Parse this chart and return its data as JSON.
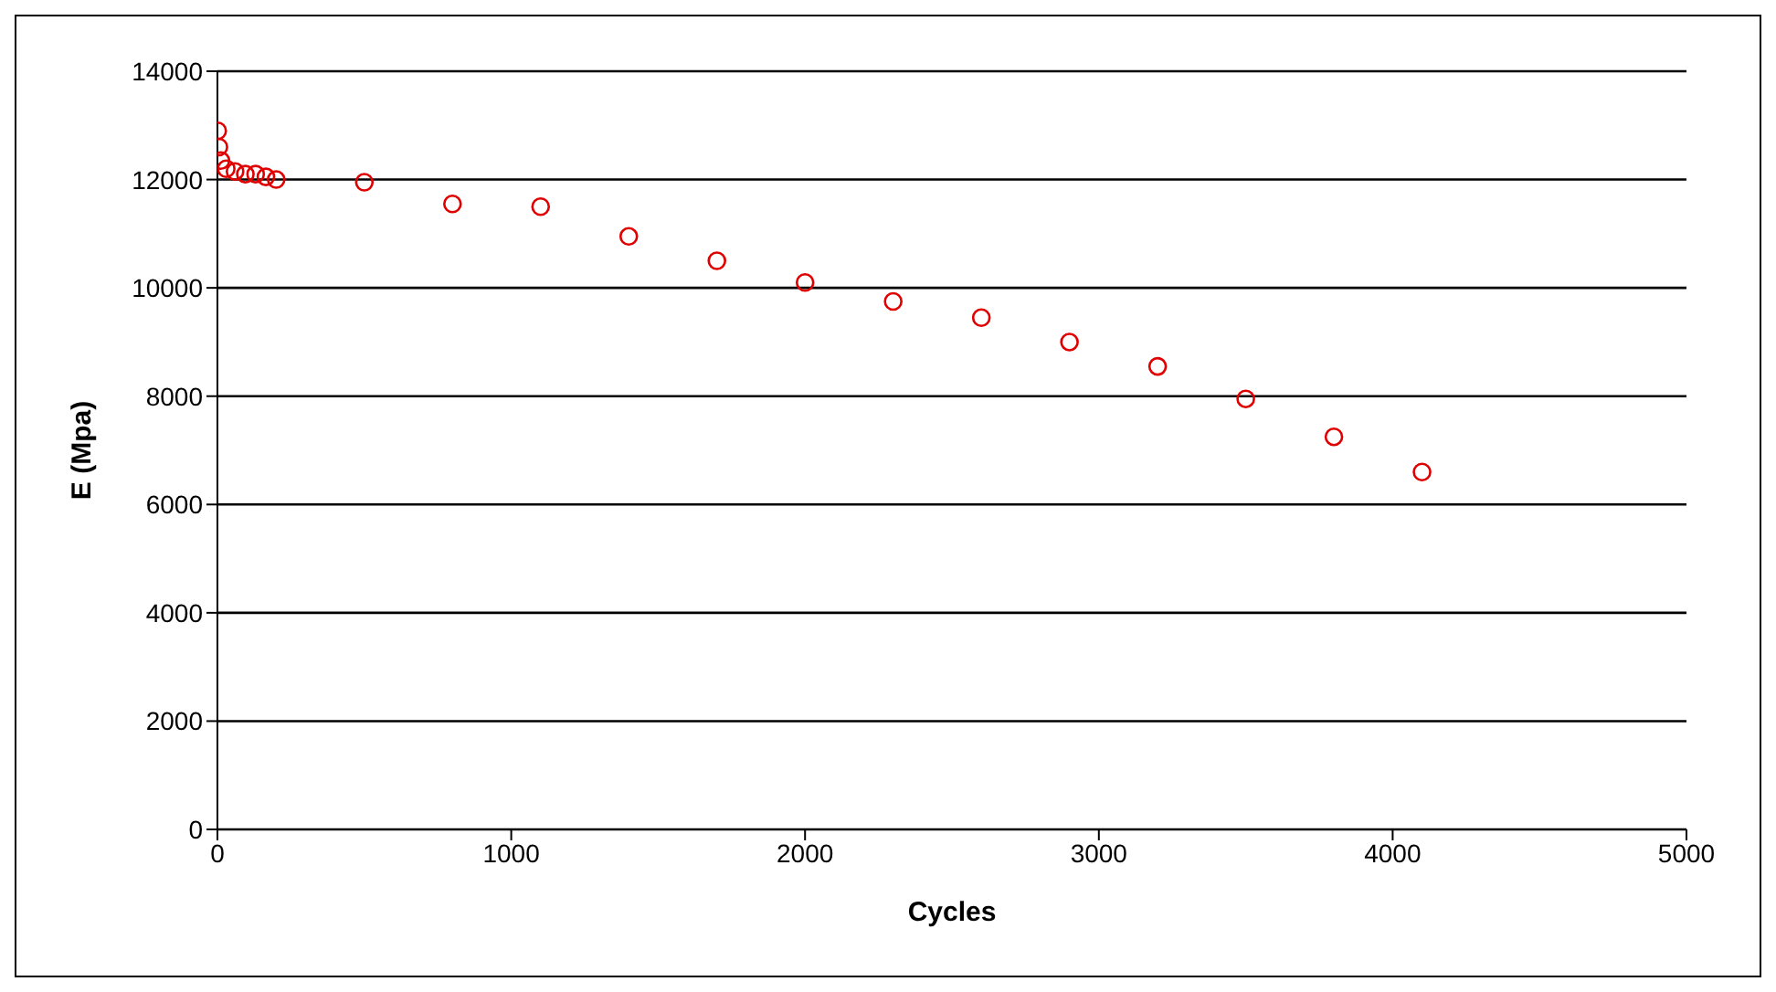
{
  "chart_data": {
    "type": "scatter",
    "xlabel": "Cycles",
    "ylabel": "E (Mpa)",
    "x": [
      1,
      5,
      12,
      30,
      60,
      95,
      130,
      165,
      200,
      500,
      800,
      1100,
      1400,
      1700,
      2000,
      2300,
      2600,
      2900,
      3200,
      3500,
      3800,
      4100
    ],
    "series": [
      {
        "color": "#e00000",
        "values": [
          12900,
          12600,
          12350,
          12200,
          12150,
          12100,
          12100,
          12050,
          12000,
          11950,
          11550,
          11500,
          10950,
          10500,
          10100,
          9750,
          9450,
          9000,
          8550,
          7950,
          7250,
          6600
        ]
      }
    ],
    "xlim": [
      0,
      5000
    ],
    "xticks": [
      0,
      1000,
      2000,
      3000,
      4000,
      5000
    ],
    "ylim": [
      0,
      14000
    ],
    "yticks": [
      0,
      2000,
      4000,
      6000,
      8000,
      10000,
      12000,
      14000
    ],
    "grid": "y",
    "legend": false,
    "marker": "circle"
  }
}
